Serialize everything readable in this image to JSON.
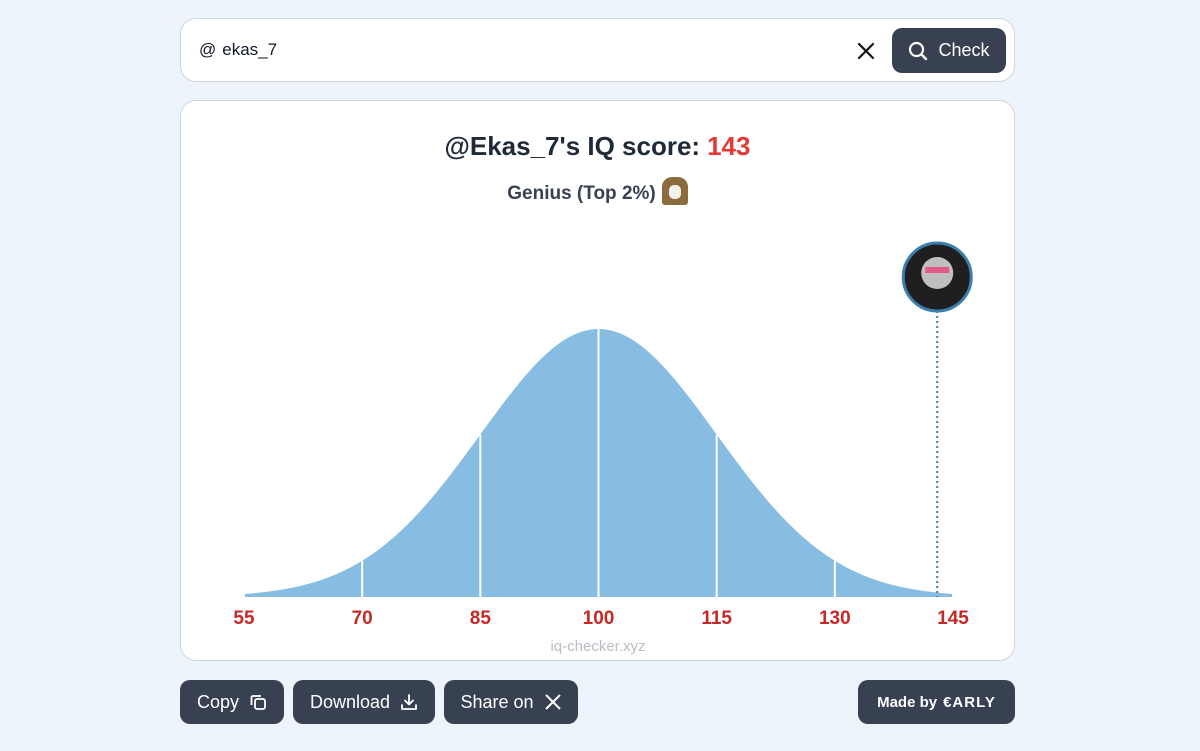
{
  "search": {
    "prefix": "@",
    "query": "ekas_7",
    "button": "Check"
  },
  "chart_data": {
    "type": "bell",
    "title": "@Ekas_7's IQ score:",
    "score": 143,
    "subtitle": "Genius (Top 2%)",
    "xlim": [
      55,
      145
    ],
    "xticks": [
      55,
      70,
      85,
      100,
      115,
      130,
      145
    ],
    "color": "#88bde3",
    "tick_label_color": "#c62828",
    "marker_color": "#3b7fad",
    "footer": "iq-checker.xyz"
  },
  "actions": [
    "Copy",
    "Download",
    "Share on"
  ],
  "credit": {
    "label": "Made by",
    "brand": "€ARLY"
  }
}
